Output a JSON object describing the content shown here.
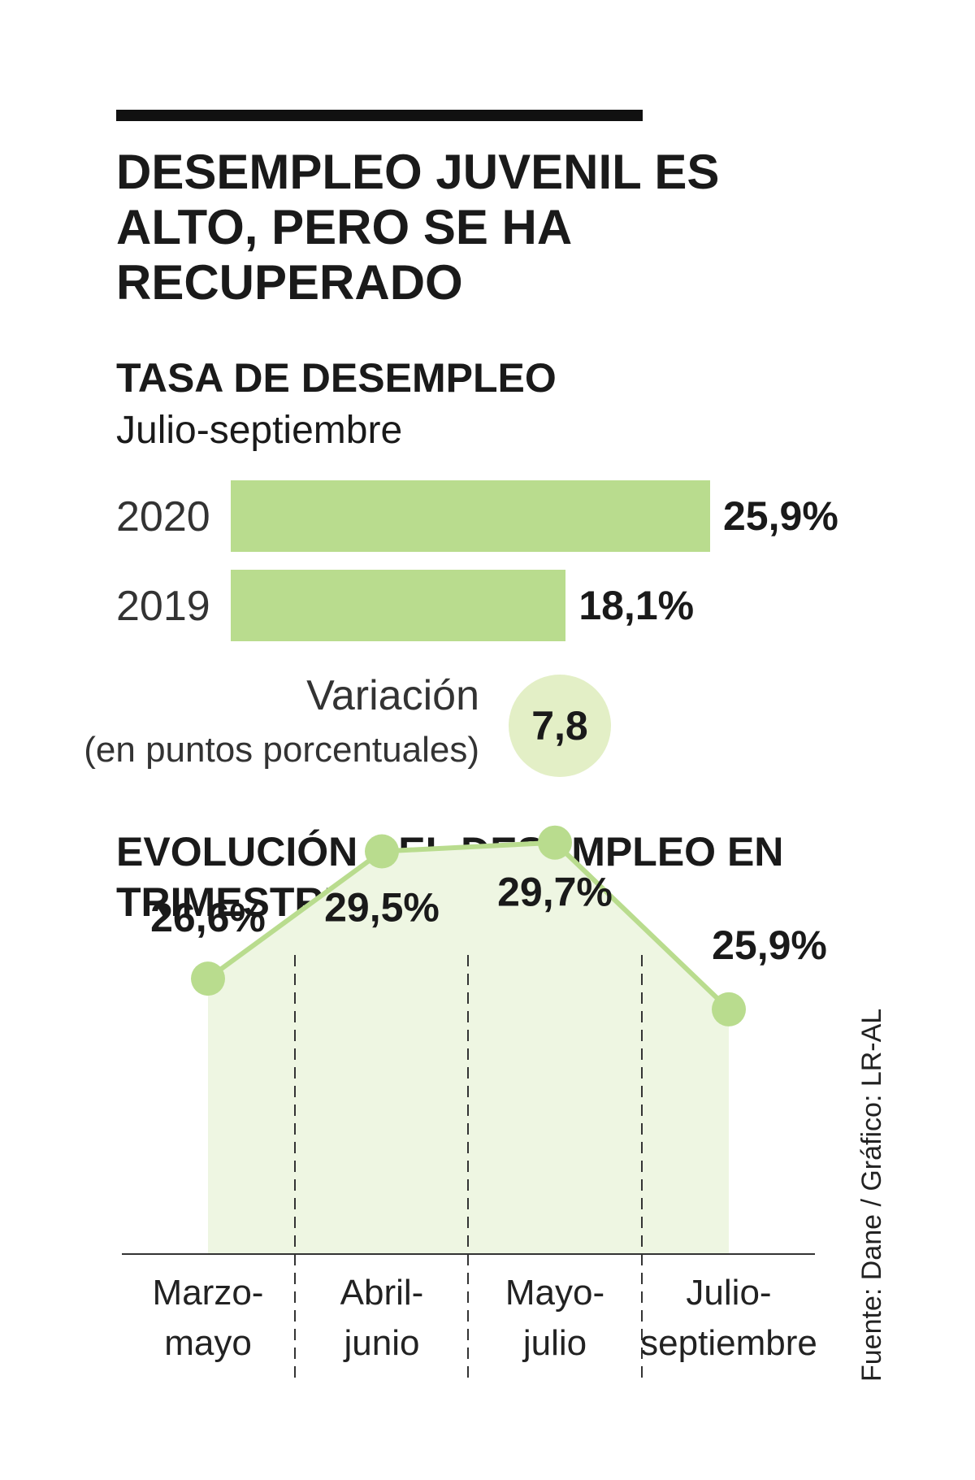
{
  "headline": "DESEMPLEO JUVENIL ES ALTO, PERO SE HA RECUPERADO",
  "section1": {
    "title": "TASA DE DESEMPLEO",
    "subtitle": "Julio-septiembre"
  },
  "section2": {
    "title": "EVOLUCIÓN DEL DESEMPLEO EN TRIMESTRE MÓVIL"
  },
  "variation": {
    "label": "Variación",
    "sublabel": "(en puntos porcentuales)",
    "value": "7,8"
  },
  "source": "Fuente: Dane / Gráfico: LR-AL",
  "colors": {
    "bar": "#b9dc8e",
    "line": "#b9dc8e",
    "area": "#eef6e2",
    "circle": "#e3efc6"
  },
  "chart_data": [
    {
      "type": "bar",
      "orientation": "horizontal",
      "title": "TASA DE DESEMPLEO",
      "subtitle": "Julio-septiembre",
      "categories": [
        "2020",
        "2019"
      ],
      "values": [
        25.9,
        18.1
      ],
      "value_labels": [
        "25,9%",
        "18,1%"
      ]
    },
    {
      "type": "line",
      "title": "EVOLUCIÓN DEL DESEMPLEO EN TRIMESTRE MÓVIL",
      "categories": [
        [
          "Marzo-",
          "mayo"
        ],
        [
          "Abril-",
          "junio"
        ],
        [
          "Mayo-",
          "julio"
        ],
        [
          "Julio-",
          "septiembre"
        ]
      ],
      "values": [
        26.6,
        29.5,
        29.7,
        25.9
      ],
      "value_labels": [
        "26,6%",
        "29,5%",
        "29,7%",
        "25,9%"
      ],
      "area_fill": true,
      "grid": false,
      "ylim": [
        22.5,
        30.5
      ]
    }
  ]
}
